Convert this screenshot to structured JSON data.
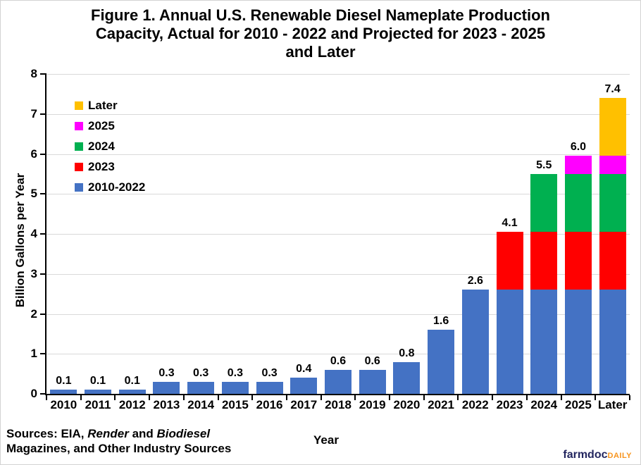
{
  "figure": {
    "title_lines": [
      "Figure 1. Annual U.S. Renewable Diesel Nameplate Production",
      "Capacity, Actual for 2010 - 2022 and Projected for 2023 - 2025",
      "and Later"
    ]
  },
  "chart_data": {
    "type": "bar",
    "stacked": true,
    "title": "Figure 1. Annual U.S. Renewable Diesel Nameplate Production Capacity, Actual for 2010 - 2022 and Projected for 2023 - 2025 and Later",
    "xlabel": "Year",
    "ylabel": "Billion Gallons per Year",
    "ylim": [
      0,
      8
    ],
    "ytick_interval": 1,
    "grid": true,
    "grid_color": "#D9D9D9",
    "legend_position": "upper-left-inside",
    "categories": [
      "2010",
      "2011",
      "2012",
      "2013",
      "2014",
      "2015",
      "2016",
      "2017",
      "2018",
      "2019",
      "2020",
      "2021",
      "2022",
      "2023",
      "2024",
      "2025",
      "Later"
    ],
    "series": [
      {
        "name": "2010-2022",
        "color": "#4472C4",
        "values": [
          0.1,
          0.1,
          0.1,
          0.3,
          0.3,
          0.3,
          0.3,
          0.4,
          0.6,
          0.6,
          0.8,
          1.6,
          2.6,
          2.6,
          2.6,
          2.6,
          2.6
        ]
      },
      {
        "name": "2023",
        "color": "#FF0000",
        "values": [
          0,
          0,
          0,
          0,
          0,
          0,
          0,
          0,
          0,
          0,
          0,
          0,
          0,
          1.45,
          1.45,
          1.45,
          1.45
        ]
      },
      {
        "name": "2024",
        "color": "#00B050",
        "values": [
          0,
          0,
          0,
          0,
          0,
          0,
          0,
          0,
          0,
          0,
          0,
          0,
          0,
          0,
          1.45,
          1.45,
          1.45
        ]
      },
      {
        "name": "2025",
        "color": "#FF00FF",
        "values": [
          0,
          0,
          0,
          0,
          0,
          0,
          0,
          0,
          0,
          0,
          0,
          0,
          0,
          0,
          0,
          0.45,
          0.45
        ]
      },
      {
        "name": "Later",
        "color": "#FFC000",
        "values": [
          0,
          0,
          0,
          0,
          0,
          0,
          0,
          0,
          0,
          0,
          0,
          0,
          0,
          0,
          0,
          0,
          1.45
        ]
      }
    ],
    "bar_total_labels": [
      "0.1",
      "0.1",
      "0.1",
      "0.3",
      "0.3",
      "0.3",
      "0.3",
      "0.4",
      "0.6",
      "0.6",
      "0.8",
      "1.6",
      "2.6",
      "4.1",
      "5.5",
      "6.0",
      "7.4"
    ],
    "legend": [
      {
        "label": "Later",
        "color": "#FFC000"
      },
      {
        "label": "2025",
        "color": "#FF00FF"
      },
      {
        "label": "2024",
        "color": "#00B050"
      },
      {
        "label": "2023",
        "color": "#FF0000"
      },
      {
        "label": "2010-2022",
        "color": "#4472C4"
      }
    ]
  },
  "sources": {
    "line1_parts": [
      {
        "text": "Sources: EIA, ",
        "italic": false
      },
      {
        "text": "Render",
        "italic": true
      },
      {
        "text": " and ",
        "italic": false
      },
      {
        "text": "Biodiesel",
        "italic": true
      }
    ],
    "line2": "Magazines, and Other Industry Sources"
  },
  "branding": {
    "name_main": "farmdoc",
    "name_suffix": "DAILY",
    "navy": "#23265F",
    "orange": "#F7941D"
  }
}
